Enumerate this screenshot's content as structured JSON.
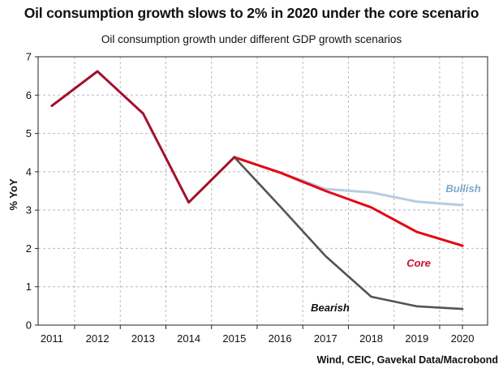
{
  "header": {
    "title": "Oil consumption growth slows to 2% in 2020 under the core scenario",
    "subtitle": "Oil consumption growth under different GDP growth scenarios"
  },
  "footer": {
    "source": "Wind, CEIC, Gavekal Data/Macrobond"
  },
  "chart_data": {
    "type": "line",
    "title": "Oil consumption growth slows to 2% in 2020 under the core scenario",
    "subtitle": "Oil consumption growth under different GDP growth scenarios",
    "xlabel": "",
    "ylabel": "% YoY",
    "x": [
      2011,
      2012,
      2013,
      2014,
      2015,
      2016,
      2017,
      2018,
      2019,
      2020
    ],
    "xlim": [
      2010.7,
      2020.55
    ],
    "ylim": [
      0,
      7
    ],
    "yticks": [
      0,
      1,
      2,
      3,
      4,
      5,
      6,
      7
    ],
    "grid": true,
    "legend": "inline labels",
    "colors": {
      "historical": "#a3102c",
      "core": "#e30613",
      "bullish": "#b4cde3",
      "bearish": "#545454",
      "bullish_label": "#7ea8cf",
      "core_label": "#c8102e",
      "bearish_label": "#111111"
    },
    "series": [
      {
        "id": "historical",
        "name": "",
        "x": [
          2011,
          2012,
          2013,
          2014,
          2015
        ],
        "values": [
          5.72,
          6.62,
          5.52,
          3.2,
          4.38
        ]
      },
      {
        "id": "bullish",
        "name": "Bullish",
        "x": [
          2015,
          2016,
          2017,
          2018,
          2019,
          2020
        ],
        "values": [
          4.38,
          3.98,
          3.55,
          3.46,
          3.22,
          3.13
        ]
      },
      {
        "id": "core",
        "name": "Core",
        "x": [
          2015,
          2016,
          2017,
          2018,
          2019,
          2020
        ],
        "values": [
          4.38,
          3.98,
          3.5,
          3.07,
          2.43,
          2.07
        ]
      },
      {
        "id": "bearish",
        "name": "Bearish",
        "x": [
          2015,
          2016,
          2017,
          2018,
          2019,
          2020
        ],
        "values": [
          4.38,
          3.1,
          1.8,
          0.74,
          0.49,
          0.42
        ]
      }
    ]
  }
}
